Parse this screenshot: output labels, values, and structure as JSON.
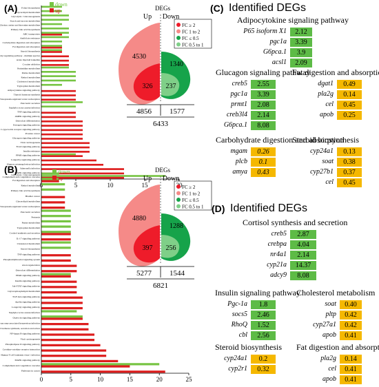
{
  "panels": {
    "A": "(A)",
    "B": "(B)",
    "C": "(C)",
    "D": "(D)"
  },
  "colors": {
    "up": "#dd1d1d",
    "down": "#77c443",
    "fc_up_strong": "#ee1c2a",
    "fc_up_weak": "#f58a88",
    "fc_down_strong": "#16a34a",
    "fc_down_weak": "#7fcf88",
    "green_cell": "#5dbb46",
    "orange_cell": "#f5b800"
  },
  "chart_data": [
    {
      "type": "bar",
      "orientation": "horizontal",
      "panel": "A",
      "legend": [
        "down",
        "up"
      ],
      "xlim": [
        0,
        20
      ],
      "xticks": [
        0,
        5,
        10,
        15,
        20
      ],
      "categories": [
        "Folate biosynthesis",
        "Glycerolipid metabolism",
        "Glycolysis / Gluconeogenesis",
        "Starch and sucrose metabolism",
        "Glycine, serine and threonine metabolism",
        "Primary bile acid biosynthesis",
        "ABC transporters",
        "Antifolate resistance",
        "Carbohydrate digestion and absorption",
        "Fat digestion and absorption",
        "Steroid biosynthesis",
        "Longevity regulating pathway - multiple species",
        "Acute myeloid leukemia",
        "Cocaine addiction",
        "Pyrimidine metabolism",
        "Purine metabolism",
        "Retinol metabolism",
        "Cholesterol metabolism",
        "Tryptophan metabolism",
        "Adipocytokine signaling pathway",
        "Thyroid hormone synthesis",
        "Vasopressin-regulated water reabsorption",
        "Pancreatic secretion",
        "Staphylococcus aureus infection",
        "TNF signaling pathway",
        "AMPK signaling pathway",
        "Osteoclast differentiation",
        "Estrogen signaling pathway",
        "C-type lectin receptor signaling pathway",
        "Prostate cancer",
        "Glucagon signaling pathway",
        "Viral carcinogenesis",
        "FoxO signaling pathway",
        "Insulin resistance",
        "PPAR signaling pathway",
        "Longevity regulating pathway",
        "Human cytomegalovirus infection",
        "Salmonella infection",
        "MAPK signaling pathway",
        "Complement and coagulation cascades"
      ],
      "series": [
        {
          "name": "down",
          "values": [
            3,
            3,
            4,
            4,
            3,
            4,
            4,
            4,
            3,
            3,
            3,
            0,
            0,
            0,
            4,
            5,
            5,
            5,
            3,
            0,
            0,
            0,
            6,
            5,
            0,
            0,
            0,
            0,
            0,
            0,
            0,
            0,
            0,
            0,
            5,
            0,
            0,
            0,
            0,
            18
          ]
        },
        {
          "name": "up",
          "values": [
            0,
            0,
            0,
            0,
            0,
            0,
            3,
            0,
            0,
            3,
            3,
            4,
            4,
            4,
            0,
            0,
            0,
            0,
            0,
            5,
            5,
            5,
            0,
            0,
            5,
            5,
            6,
            6,
            6,
            6,
            6,
            7,
            7,
            7,
            6,
            8,
            9,
            12,
            12,
            12
          ]
        }
      ],
      "venn": {
        "title": "DEGs",
        "up_label": "Up",
        "down_label": "Down",
        "up_outer": "4530",
        "up_inner": "326",
        "down_outer": "1340",
        "down_inner": "237",
        "up_total": "4856",
        "down_total": "1577",
        "total": "6433"
      },
      "fc_legend": [
        "FC ≥ 2",
        "FC 1 to 2",
        "FC ≤ 0.5",
        "FC 0.5 to 1"
      ]
    },
    {
      "type": "bar",
      "orientation": "horizontal",
      "panel": "B",
      "legend": [
        "down",
        "up"
      ],
      "xlim": [
        0,
        25
      ],
      "xticks": [
        0,
        5,
        10,
        15,
        20,
        25
      ],
      "categories": [
        "Glycolysis / Gluconeogenesis",
        "Fat digestion and absorption",
        "Retinol metabolism",
        "Primary bile acid biosynthesis",
        "Bladder cancer",
        "Glycerolipid metabolism",
        "Vasopressin-regulated water reabsorption",
        "Pancreatic secretion",
        "Pertussis",
        "Purine metabolism",
        "Tryptophan metabolism",
        "Cortisol synthesis and secretion",
        "IL-17 signaling pathway",
        "Cholesterol metabolism",
        "Steroid biosynthesis",
        "TNF signaling pathway",
        "Phosphatidylinositol signaling system",
        "Axon regeneration",
        "Osteoclast differentiation",
        "PPAR signaling pathway",
        "Insulin signaling pathway",
        "Jak-STAT signaling pathway",
        "Glycerophospholipid metabolism",
        "TGF-beta signaling pathway",
        "Apelin signaling pathway",
        "Longevity signaling pathway",
        "Staphylococcus aureus infection",
        "Oxytocin signaling pathway",
        "Kaposi sarcoma-associated herpesvirus infection",
        "Parathyroid hormone synthesis, secretion and action",
        "NF-kappa B signaling pathway",
        "Viral carcinogenesis",
        "Phospholipase D signaling pathway",
        "Cytokine-cytokine receptor interaction",
        "Human T-cell leukemia virus 1 infection",
        "MAPK signaling pathway",
        "Complement and coagulation cascades",
        "Pathways in cancer"
      ],
      "series": [
        {
          "name": "down",
          "values": [
            3,
            3,
            4,
            4,
            0,
            0,
            0,
            5,
            5,
            5,
            5,
            5,
            0,
            5,
            5,
            0,
            0,
            0,
            0,
            5,
            0,
            0,
            0,
            0,
            0,
            0,
            6,
            7,
            0,
            0,
            0,
            0,
            0,
            0,
            0,
            0,
            20,
            0
          ]
        },
        {
          "name": "up",
          "values": [
            0,
            3,
            0,
            0,
            4,
            4,
            4,
            0,
            0,
            0,
            0,
            5,
            5,
            0,
            0,
            5,
            5,
            6,
            6,
            5,
            6,
            6,
            6,
            7,
            7,
            7,
            0,
            7,
            8,
            8,
            9,
            9,
            10,
            11,
            11,
            13,
            15,
            21
          ]
        }
      ],
      "venn": {
        "title": "DEGs",
        "up_label": "Up",
        "down_label": "Down",
        "up_outer": "4880",
        "up_inner": "397",
        "down_outer": "1288",
        "down_inner": "256",
        "up_total": "5277",
        "down_total": "1544",
        "total": "6821"
      },
      "fc_legend": [
        "FC ≥ 2",
        "FC 1 to 2",
        "FC ≤ 0.5",
        "FC 0.5 to 1"
      ]
    },
    {
      "type": "table",
      "panel": "C",
      "title": "Identified DEGs",
      "groups": [
        {
          "title": "Adipocytokine signaling pathway",
          "color": "green",
          "rows": [
            {
              "gene": "P65 isoform X1",
              "fc": "2.12"
            },
            {
              "gene": "pgc1a",
              "fc": "3.39"
            },
            {
              "gene": "G6pca.1",
              "fc": "3.9"
            },
            {
              "gene": "acsl1",
              "fc": "2.09"
            }
          ]
        },
        {
          "title": "Glucagon signaling pathway",
          "color": "green",
          "rows": [
            {
              "gene": "creb5",
              "fc": "2.55"
            },
            {
              "gene": "pgc1a",
              "fc": "3.39"
            },
            {
              "gene": "prmt1",
              "fc": "2.08"
            },
            {
              "gene": "creb3l4",
              "fc": "2.14"
            },
            {
              "gene": "G6pca.1",
              "fc": "8.08"
            }
          ]
        },
        {
          "title": "Fat digestion and absorption",
          "color": "orange",
          "rows": [
            {
              "gene": "dgat1",
              "fc": "0.49"
            },
            {
              "gene": "pla2g",
              "fc": "0.14"
            },
            {
              "gene": "cel",
              "fc": "0.45"
            },
            {
              "gene": "apob",
              "fc": "0.25"
            }
          ]
        },
        {
          "title": "Carbohydrate digestion and absorption",
          "color": "orange",
          "rows": [
            {
              "gene": "mgam",
              "fc": "0.26"
            },
            {
              "gene": "plcb",
              "fc": "0.1"
            },
            {
              "gene": "amya",
              "fc": "0.43"
            }
          ]
        },
        {
          "title": "Steroid biosynthesis",
          "color": "orange",
          "rows": [
            {
              "gene": "cyp24a1",
              "fc": "0.13"
            },
            {
              "gene": "soat",
              "fc": "0.38"
            },
            {
              "gene": "cyp27b1",
              "fc": "0.37"
            },
            {
              "gene": "cel",
              "fc": "0.45"
            }
          ]
        }
      ]
    },
    {
      "type": "table",
      "panel": "D",
      "title": "Identified DEGs",
      "groups": [
        {
          "title": "Cortisol synthesis and secretion",
          "color": "green",
          "rows": [
            {
              "gene": "creb5",
              "fc": "2.87"
            },
            {
              "gene": "crebpa",
              "fc": "4.04"
            },
            {
              "gene": "nr4a1",
              "fc": "2.14"
            },
            {
              "gene": "cyp21a",
              "fc": "14.37"
            },
            {
              "gene": "adcy9",
              "fc": "8.08"
            }
          ]
        },
        {
          "title": "Insulin signaling pathway",
          "color": "green",
          "rows": [
            {
              "gene": "Pgc-1a",
              "fc": "1.8"
            },
            {
              "gene": "socs5",
              "fc": "2.46"
            },
            {
              "gene": "RhoQ",
              "fc": "1.52"
            },
            {
              "gene": "cbl",
              "fc": "2.56"
            }
          ]
        },
        {
          "title": "Cholesterol metabolism",
          "color": "orange",
          "rows": [
            {
              "gene": "soat",
              "fc": "0.40"
            },
            {
              "gene": "pltp",
              "fc": "0.42"
            },
            {
              "gene": "cyp27a1",
              "fc": "0.42"
            },
            {
              "gene": "apob",
              "fc": "0.41"
            }
          ]
        },
        {
          "title": "Steroid biosynthesis",
          "color": "orange",
          "rows": [
            {
              "gene": "cyp24a1",
              "fc": "0.2"
            },
            {
              "gene": "cyp2r1",
              "fc": "0.32"
            }
          ]
        },
        {
          "title": "Fat digestion and absorption",
          "color": "orange",
          "rows": [
            {
              "gene": "pla2g",
              "fc": "0.14"
            },
            {
              "gene": "cel",
              "fc": "0.41"
            },
            {
              "gene": "apob",
              "fc": "0.41"
            }
          ]
        }
      ]
    }
  ]
}
